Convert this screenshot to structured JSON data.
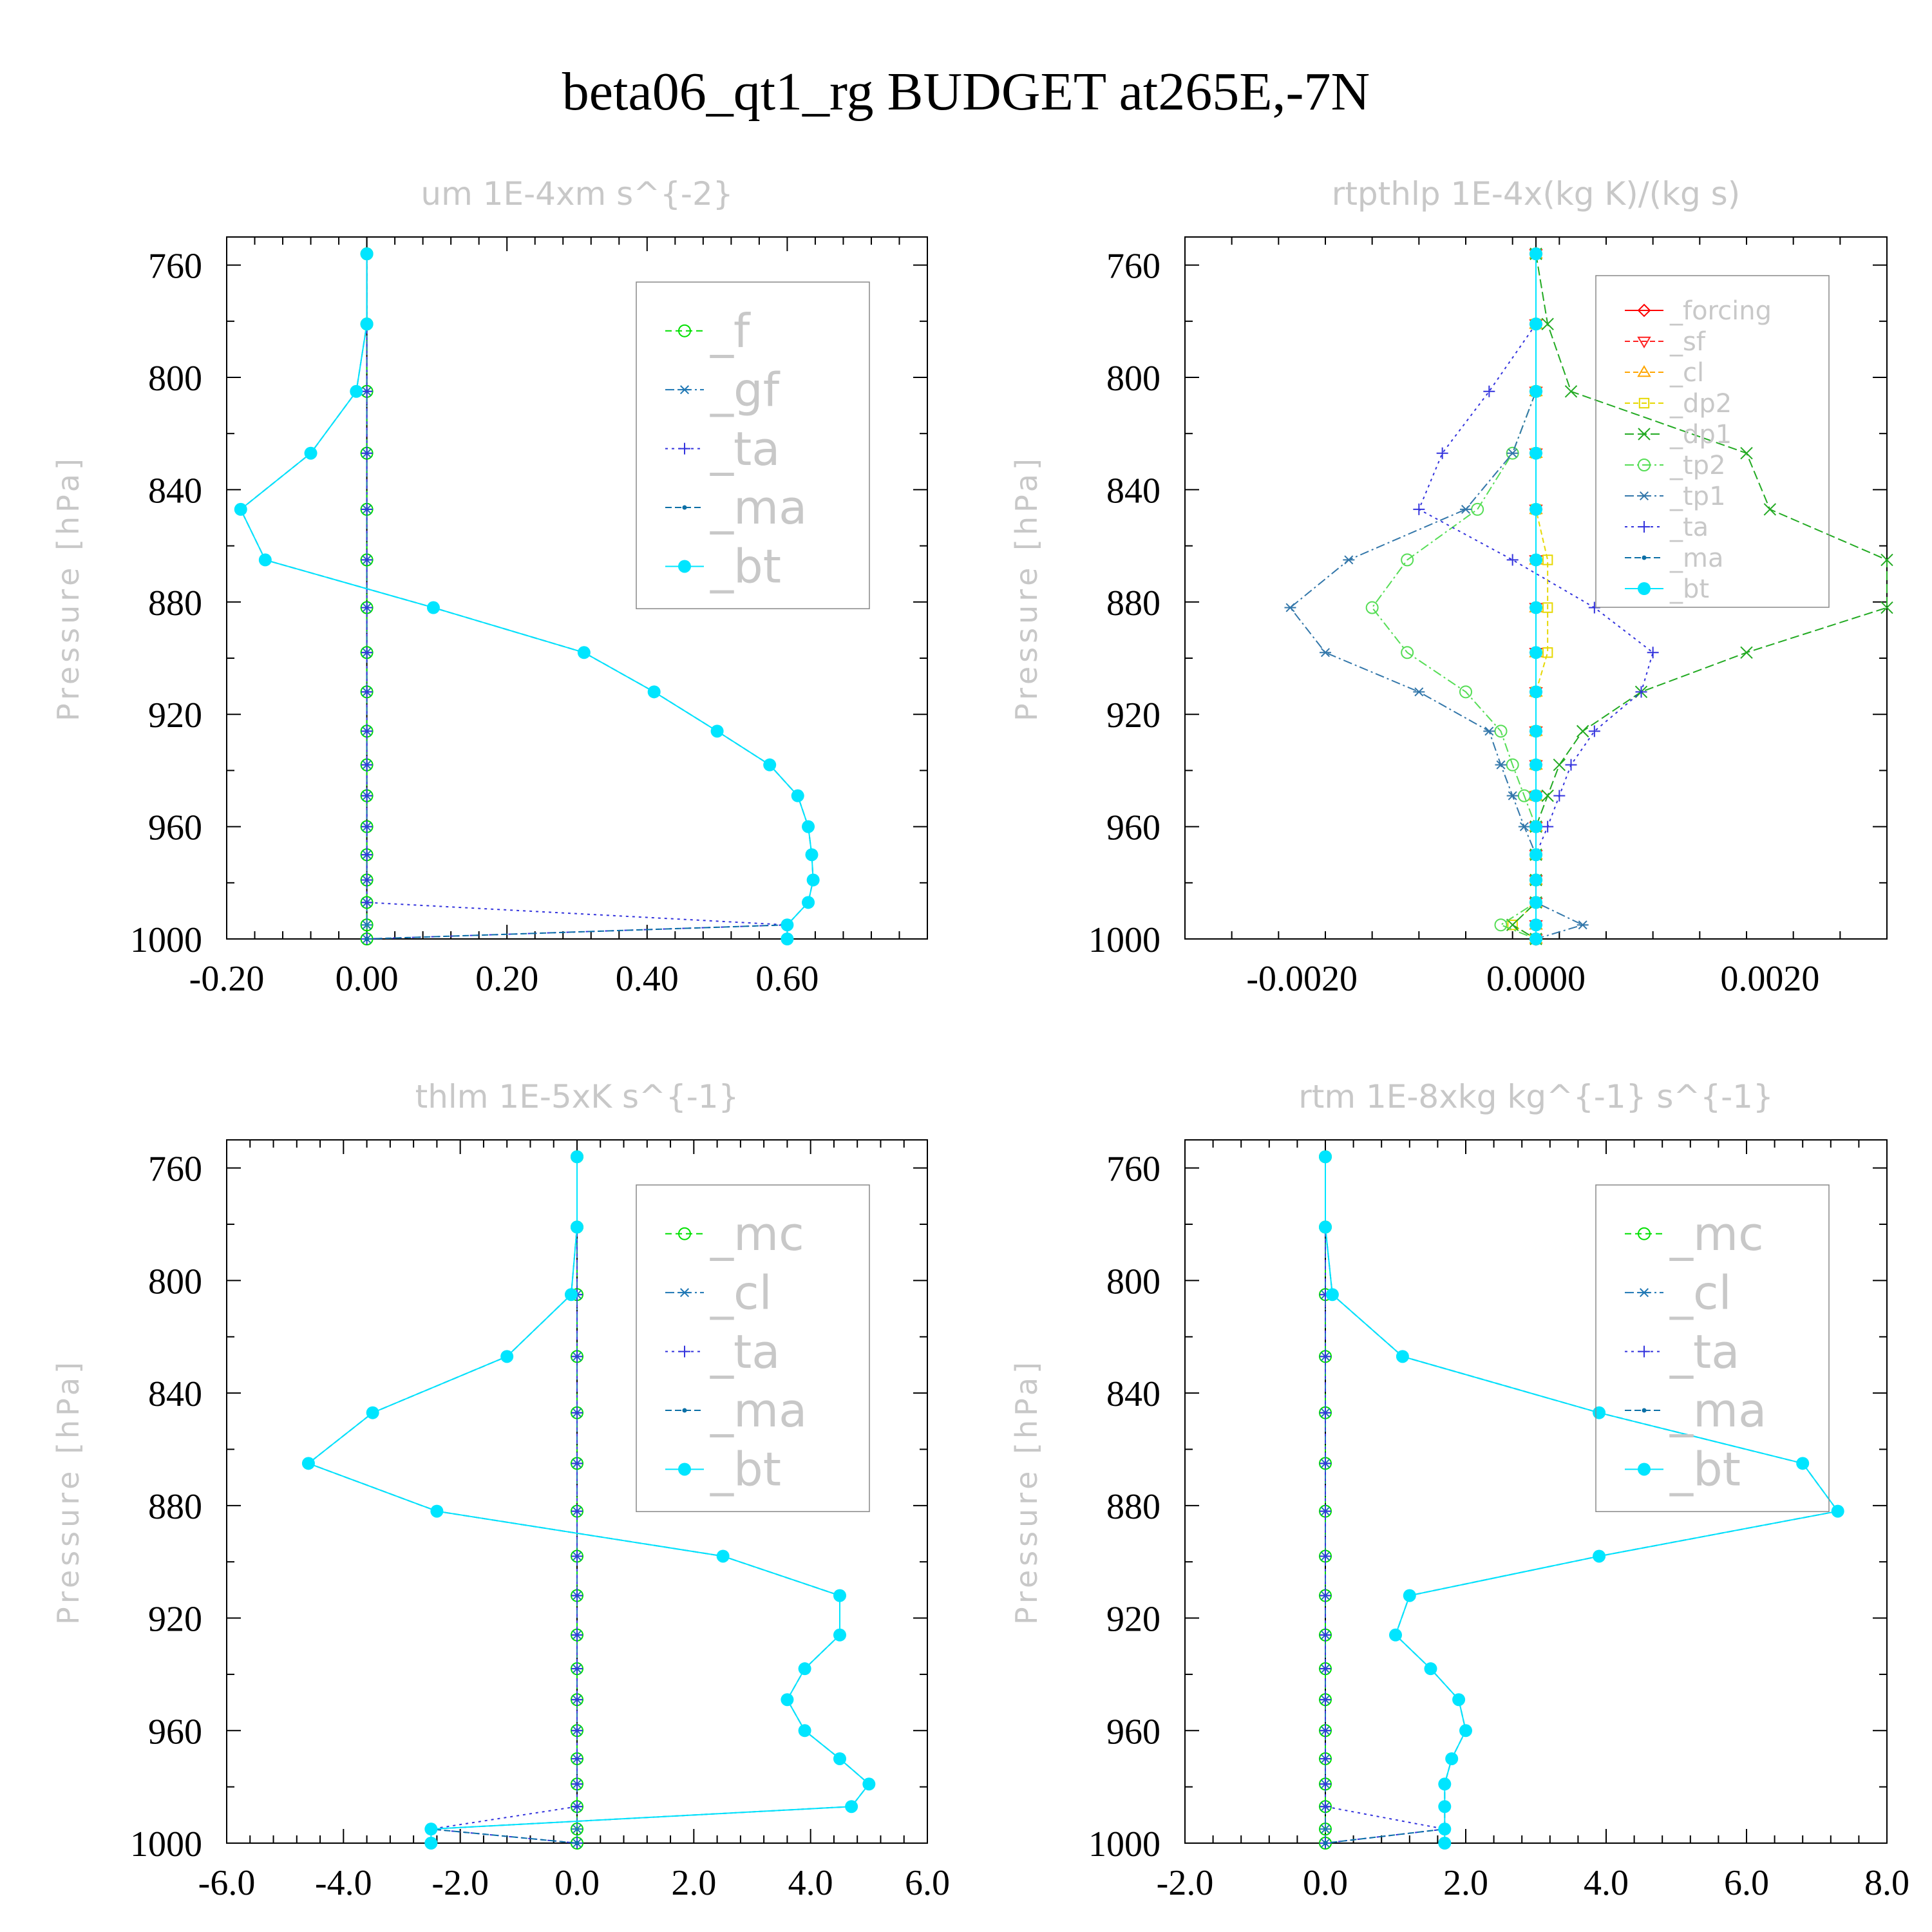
{
  "figure": {
    "title": "beta06_qt1_rg  BUDGET at265E,-7N"
  },
  "chart_data": [
    {
      "type": "line",
      "title": "um   1E-4xm s^{-2}",
      "ylabel": "Pressure [hPa]",
      "xlim": [
        -0.2,
        0.8
      ],
      "ylim": [
        1000,
        750
      ],
      "xticks": [
        -0.2,
        0.0,
        0.2,
        0.4,
        0.6
      ],
      "xtick_labels": [
        "-0.20",
        "0.00",
        "0.20",
        "0.40",
        "0.60"
      ],
      "yticks": [
        760,
        800,
        840,
        880,
        920,
        960,
        1000
      ],
      "ytick_labels": [
        "760",
        "800",
        "840",
        "880",
        "920",
        "960",
        "1000"
      ],
      "legend_position": "top-right",
      "legend_font": 72,
      "levels": [
        756,
        781,
        805,
        827,
        847,
        865,
        882,
        898,
        912,
        926,
        938,
        949,
        960,
        970,
        979,
        987,
        995,
        1000
      ],
      "series": [
        {
          "name": "_f",
          "color": "#00e000",
          "marker": "circle-open",
          "dash": "10,6",
          "values": [
            0,
            0,
            0,
            0,
            0,
            0,
            0,
            0,
            0,
            0,
            0,
            0,
            0,
            0,
            0,
            0,
            0,
            0
          ]
        },
        {
          "name": "_gf",
          "color": "#1f77b4",
          "marker": "asterisk",
          "dash": "14,5,3,5",
          "values": [
            0,
            0,
            0,
            0,
            0,
            0,
            0,
            0,
            0,
            0,
            0,
            0,
            0,
            0,
            0,
            0,
            0,
            0
          ]
        },
        {
          "name": "_ta",
          "color": "#3333dd",
          "marker": "plus",
          "dash": "4,6",
          "values": [
            0,
            0,
            0,
            0,
            0,
            0,
            0,
            0,
            0,
            0,
            0,
            0,
            0,
            0,
            0,
            0,
            0.6,
            0
          ]
        },
        {
          "name": "_ma",
          "color": "#0b6fa6",
          "marker": "dot",
          "dash": "10,5",
          "values": [
            0,
            0,
            -0.015,
            -0.08,
            -0.18,
            -0.145,
            0.095,
            0.31,
            0.41,
            0.5,
            0.575,
            0.615,
            0.63,
            0.635,
            0.637,
            0.63,
            0.6,
            0
          ]
        },
        {
          "name": "_bt",
          "color": "#00e5ff",
          "marker": "filled",
          "dash": "",
          "values": [
            0,
            0,
            -0.015,
            -0.08,
            -0.18,
            -0.145,
            0.095,
            0.31,
            0.41,
            0.5,
            0.575,
            0.615,
            0.63,
            0.635,
            0.637,
            0.63,
            0.6,
            0.6
          ]
        }
      ]
    },
    {
      "type": "line",
      "title": "rtpthlp   1E-4x(kg K)/(kg s)",
      "ylabel": "Pressure [hPa]",
      "xlim": [
        -0.003,
        0.003
      ],
      "ylim": [
        1000,
        750
      ],
      "xticks": [
        -0.002,
        0.0,
        0.002
      ],
      "xtick_labels": [
        "-0.0020",
        "0.0000",
        "0.0020"
      ],
      "yticks": [
        760,
        800,
        840,
        880,
        920,
        960,
        1000
      ],
      "ytick_labels": [
        "760",
        "800",
        "840",
        "880",
        "920",
        "960",
        "1000"
      ],
      "legend_position": "top-right",
      "legend_font": 40,
      "levels": [
        756,
        781,
        805,
        827,
        847,
        865,
        882,
        898,
        912,
        926,
        938,
        949,
        960,
        970,
        979,
        987,
        995,
        1000
      ],
      "series": [
        {
          "name": "_forcing",
          "color": "#ff0000",
          "marker": "diamond-open",
          "dash": "",
          "values": [
            0,
            0,
            0,
            0,
            0,
            0,
            0,
            0,
            0,
            0,
            0,
            0,
            0,
            0,
            0,
            0,
            0,
            0
          ]
        },
        {
          "name": "_sf",
          "color": "#ff2222",
          "marker": "tri-down",
          "dash": "8,5",
          "values": [
            0,
            0,
            0,
            0,
            0,
            0,
            0,
            0,
            0,
            0,
            0,
            0,
            0,
            0,
            0,
            0,
            0,
            0
          ]
        },
        {
          "name": "_cl",
          "color": "#ffa500",
          "marker": "tri-up",
          "dash": "8,5",
          "values": [
            0,
            0,
            0,
            0,
            0,
            0,
            0,
            0,
            0,
            0,
            0,
            0,
            0,
            0,
            0,
            0,
            0,
            0
          ]
        },
        {
          "name": "_dp2",
          "color": "#e6d800",
          "marker": "square-open",
          "dash": "8,5",
          "values": [
            0,
            0,
            0,
            0,
            0,
            0.0001,
            0.0001,
            0.0001,
            0,
            0,
            0,
            0,
            0,
            0,
            0,
            0,
            -0.0002,
            0
          ]
        },
        {
          "name": "_dp1",
          "color": "#22aa22",
          "marker": "cross",
          "dash": "14,6",
          "values": [
            0,
            0.0001,
            0.0003,
            0.0018,
            0.002,
            0.003,
            0.003,
            0.0018,
            0.0009,
            0.0004,
            0.0002,
            0.0001,
            0,
            0,
            0,
            0,
            -0.0002,
            0
          ]
        },
        {
          "name": "_tp2",
          "color": "#55dd55",
          "marker": "circle-open",
          "dash": "14,5,3,5",
          "values": [
            0,
            0,
            0,
            -0.0002,
            -0.0005,
            -0.0011,
            -0.0014,
            -0.0011,
            -0.0006,
            -0.0003,
            -0.0002,
            -0.0001,
            0,
            0,
            0,
            0,
            -0.0003,
            0
          ]
        },
        {
          "name": "_tp1",
          "color": "#3377aa",
          "marker": "asterisk",
          "dash": "14,5,3,5",
          "values": [
            0,
            0,
            0,
            -0.0002,
            -0.0006,
            -0.0016,
            -0.0021,
            -0.0018,
            -0.001,
            -0.0004,
            -0.0003,
            -0.0002,
            -0.0001,
            0,
            0,
            0,
            0.0004,
            0
          ]
        },
        {
          "name": "_ta",
          "color": "#3333dd",
          "marker": "plus",
          "dash": "4,6",
          "values": [
            0,
            0,
            -0.0004,
            -0.0008,
            -0.001,
            -0.0002,
            0.0005,
            0.001,
            0.0009,
            0.0005,
            0.0003,
            0.0002,
            0.0001,
            0,
            0,
            0,
            0,
            0
          ]
        },
        {
          "name": "_ma",
          "color": "#0b6fa6",
          "marker": "dot",
          "dash": "10,5",
          "values": [
            0,
            0,
            0,
            0,
            0,
            0,
            0,
            0,
            0,
            0,
            0,
            0,
            0,
            0,
            0,
            0,
            0,
            0
          ]
        },
        {
          "name": "_bt",
          "color": "#00e5ff",
          "marker": "filled",
          "dash": "",
          "values": [
            0,
            0,
            0,
            0,
            0,
            0,
            0,
            0,
            0,
            0,
            0,
            0,
            0,
            0,
            0,
            0,
            0,
            0
          ]
        }
      ]
    },
    {
      "type": "line",
      "title": "thlm   1E-5xK s^{-1}",
      "ylabel": "Pressure [hPa]",
      "xlim": [
        -6,
        6
      ],
      "ylim": [
        1000,
        750
      ],
      "xticks": [
        -6,
        -4,
        -2,
        0,
        2,
        4,
        6
      ],
      "xtick_labels": [
        "-6.0",
        "-4.0",
        "-2.0",
        "0.0",
        "2.0",
        "4.0",
        "6.0"
      ],
      "yticks": [
        760,
        800,
        840,
        880,
        920,
        960,
        1000
      ],
      "ytick_labels": [
        "760",
        "800",
        "840",
        "880",
        "920",
        "960",
        "1000"
      ],
      "legend_position": "top-right",
      "legend_font": 72,
      "levels": [
        756,
        781,
        805,
        827,
        847,
        865,
        882,
        898,
        912,
        926,
        938,
        949,
        960,
        970,
        979,
        987,
        995,
        1000
      ],
      "series": [
        {
          "name": "_mc",
          "color": "#00e000",
          "marker": "circle-open",
          "dash": "10,6",
          "values": [
            0,
            0,
            0,
            0,
            0,
            0,
            0,
            0,
            0,
            0,
            0,
            0,
            0,
            0,
            0,
            0,
            0,
            0
          ]
        },
        {
          "name": "_cl",
          "color": "#1f77b4",
          "marker": "asterisk",
          "dash": "14,5,3,5",
          "values": [
            0,
            0,
            0,
            0,
            0,
            0,
            0,
            0,
            0,
            0,
            0,
            0,
            0,
            0,
            0,
            0,
            0,
            0
          ]
        },
        {
          "name": "_ta",
          "color": "#3333dd",
          "marker": "plus",
          "dash": "4,6",
          "values": [
            0,
            0,
            0,
            0,
            0,
            0,
            0,
            0,
            0,
            0,
            0,
            0,
            0,
            0,
            0,
            0,
            -2.5,
            0
          ]
        },
        {
          "name": "_ma",
          "color": "#0b6fa6",
          "marker": "dot",
          "dash": "10,5",
          "values": [
            0,
            0,
            -0.1,
            -1.2,
            -3.5,
            -4.6,
            -2.4,
            2.5,
            4.5,
            4.5,
            3.9,
            3.6,
            3.9,
            4.5,
            5.0,
            4.7,
            -2.5,
            0
          ]
        },
        {
          "name": "_bt",
          "color": "#00e5ff",
          "marker": "filled",
          "dash": "",
          "values": [
            0,
            0,
            -0.1,
            -1.2,
            -3.5,
            -4.6,
            -2.4,
            2.5,
            4.5,
            4.5,
            3.9,
            3.6,
            3.9,
            4.5,
            5.0,
            4.7,
            -2.5,
            -2.5
          ]
        }
      ]
    },
    {
      "type": "line",
      "title": "rtm   1E-8xkg kg^{-1} s^{-1}",
      "ylabel": "Pressure [hPa]",
      "xlim": [
        -2,
        8
      ],
      "ylim": [
        1000,
        750
      ],
      "xticks": [
        -2,
        0,
        2,
        4,
        6,
        8
      ],
      "xtick_labels": [
        "-2.0",
        "0.0",
        "2.0",
        "4.0",
        "6.0",
        "8.0"
      ],
      "yticks": [
        760,
        800,
        840,
        880,
        920,
        960,
        1000
      ],
      "ytick_labels": [
        "760",
        "800",
        "840",
        "880",
        "920",
        "960",
        "1000"
      ],
      "legend_position": "top-right",
      "legend_font": 72,
      "levels": [
        756,
        781,
        805,
        827,
        847,
        865,
        882,
        898,
        912,
        926,
        938,
        949,
        960,
        970,
        979,
        987,
        995,
        1000
      ],
      "series": [
        {
          "name": "_mc",
          "color": "#00e000",
          "marker": "circle-open",
          "dash": "10,6",
          "values": [
            0,
            0,
            0,
            0,
            0,
            0,
            0,
            0,
            0,
            0,
            0,
            0,
            0,
            0,
            0,
            0,
            0,
            0
          ]
        },
        {
          "name": "_cl",
          "color": "#1f77b4",
          "marker": "asterisk",
          "dash": "14,5,3,5",
          "values": [
            0,
            0,
            0,
            0,
            0,
            0,
            0,
            0,
            0,
            0,
            0,
            0,
            0,
            0,
            0,
            0,
            0,
            0
          ]
        },
        {
          "name": "_ta",
          "color": "#3333dd",
          "marker": "plus",
          "dash": "4,6",
          "values": [
            0,
            0,
            0,
            0,
            0,
            0,
            0,
            0,
            0,
            0,
            0,
            0,
            0,
            0,
            0,
            0,
            1.7,
            0
          ]
        },
        {
          "name": "_ma",
          "color": "#0b6fa6",
          "marker": "dot",
          "dash": "10,5",
          "values": [
            0,
            0,
            0.1,
            1.1,
            3.9,
            6.8,
            7.3,
            3.9,
            1.2,
            1.0,
            1.5,
            1.9,
            2.0,
            1.8,
            1.7,
            1.7,
            1.7,
            0
          ]
        },
        {
          "name": "_bt",
          "color": "#00e5ff",
          "marker": "filled",
          "dash": "",
          "values": [
            0,
            0,
            0.1,
            1.1,
            3.9,
            6.8,
            7.3,
            3.9,
            1.2,
            1.0,
            1.5,
            1.9,
            2.0,
            1.8,
            1.7,
            1.7,
            1.7,
            1.7
          ]
        }
      ]
    }
  ]
}
